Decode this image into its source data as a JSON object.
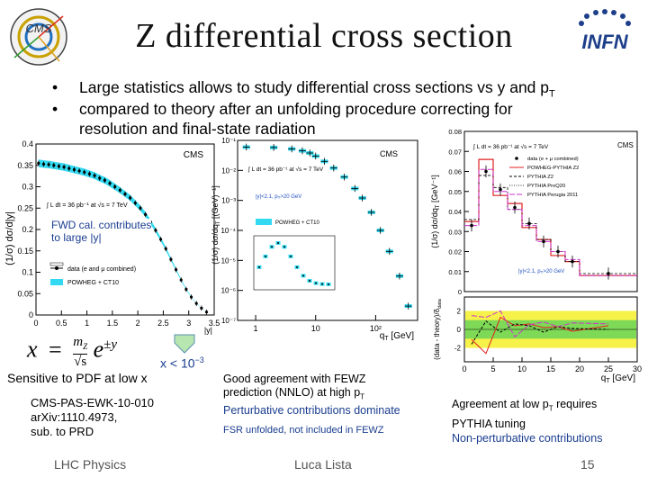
{
  "slide": {
    "title": "Z differential cross section",
    "bullets": [
      "Large statistics allows to study differential cross sections vs y and p",
      "compared to theory after an unfolding procedure correcting for",
      "resolution and final-state radiation"
    ],
    "bullet_pt_sub": "T",
    "logo_left": "CMS",
    "logo_right": "INFN",
    "fwd_note": [
      "FWD cal. contributes",
      "to large |y|"
    ],
    "formula": {
      "x": "x",
      "eq": "=",
      "mz": "m",
      "mz_sub": "Z",
      "root": "√s",
      "e": "e",
      "exp": "±y"
    },
    "x_small": "x < 10",
    "x_small_exp": "−3",
    "pdf_note": "Sensitive to PDF at low x",
    "ref": [
      "CMS-PAS-EWK-10-010",
      "arXiv:1110.4973,",
      "sub. to PRD"
    ],
    "mid_note": [
      "Good agreement with FEWZ",
      "prediction (NNLO) at high p",
      "T",
      "Perturbative contributions dominate"
    ],
    "fsr_note": "FSR unfolded, not included in FEWZ",
    "right_note": [
      "Agreement at low p",
      "T",
      " requires",
      "PYTHIA tuning",
      "Non-perturbative contributions"
    ],
    "footer_left": "LHC Physics",
    "footer_center": "Luca Lista",
    "page": "15",
    "colors": {
      "cyan_band": "#32d9f0",
      "red": "#e02020",
      "magenta": "#cc33cc",
      "green_band": "#7ed957",
      "yellow_band": "#f7f24a"
    }
  },
  "chart_data": [
    {
      "type": "scatter",
      "title": "",
      "cms_label": "CMS",
      "lumi": "∫ L dt = 36 pb⁻¹ at √s = 7 TeV",
      "xlabel": "|y|",
      "ylabel": "(1/σ) dσ/d|y|",
      "xlim": [
        0,
        3.5
      ],
      "ylim": [
        0,
        0.4
      ],
      "x_ticks": [
        "0",
        "0.5",
        "1",
        "1.5",
        "2",
        "2.5",
        "3",
        "3.5"
      ],
      "y_ticks": [
        "0",
        "0.05",
        "0.1",
        "0.15",
        "0.2",
        "0.25",
        "0.3",
        "0.35",
        "0.4"
      ],
      "legend": [
        "data (e and μ combined)",
        "POWHEG + CT10"
      ],
      "x": [
        0.05,
        0.15,
        0.25,
        0.35,
        0.45,
        0.55,
        0.65,
        0.75,
        0.85,
        0.95,
        1.05,
        1.15,
        1.25,
        1.35,
        1.45,
        1.55,
        1.65,
        1.75,
        1.85,
        1.95,
        2.05,
        2.15,
        2.25,
        2.35,
        2.45,
        2.55,
        2.65,
        2.75,
        2.85,
        2.95,
        3.05,
        3.15,
        3.25,
        3.35
      ],
      "y": [
        0.355,
        0.353,
        0.352,
        0.35,
        0.348,
        0.346,
        0.343,
        0.34,
        0.337,
        0.334,
        0.33,
        0.326,
        0.32,
        0.315,
        0.308,
        0.3,
        0.292,
        0.283,
        0.274,
        0.262,
        0.25,
        0.235,
        0.218,
        0.198,
        0.177,
        0.155,
        0.13,
        0.106,
        0.082,
        0.06,
        0.042,
        0.027,
        0.016,
        0.007
      ]
    },
    {
      "type": "line",
      "cms_label": "CMS",
      "lumi": "∫ L dt = 36 pb⁻¹ at √s = 7 TeV",
      "xlabel": "q",
      "xlabel_sub": "T",
      "xlabel_unit": " [GeV]",
      "ylabel": "(1/σ) dσ/dq",
      "ylabel_sub": "T",
      "ylabel_unit": " [(GeV)⁻¹]",
      "x_ticks": [
        "1",
        "10",
        "10²"
      ],
      "y_ticks": [
        "10⁻¹",
        "10⁻²",
        "10⁻³",
        "10⁻⁴",
        "10⁻⁵",
        "10⁻⁶",
        "10⁻⁷"
      ],
      "cut": "|y|<2.1, p",
      "cut_sub": "T",
      "cut_tail": ">20 GeV",
      "legend": [
        "POWHEG + CT10"
      ],
      "x": [
        0.7,
        2,
        4,
        6,
        8,
        10,
        14,
        20,
        30,
        45,
        60,
        85,
        120,
        170,
        250,
        350
      ],
      "y": [
        0.06,
        0.058,
        0.052,
        0.045,
        0.038,
        0.03,
        0.02,
        0.012,
        0.006,
        0.0025,
        0.0012,
        0.0004,
        0.0001,
        2e-05,
        3e-06,
        3e-07
      ]
    },
    {
      "type": "bar",
      "cms_label": "CMS",
      "lumi": "∫ L dt = 36 pb⁻¹ at √s = 7 TeV",
      "xlabel": "q",
      "xlabel_sub": "T",
      "xlabel_unit": " [GeV]",
      "ylabel": "(1/σ) dσ/dq",
      "ylabel_sub": "T",
      "ylabel_unit": " [GeV⁻¹]",
      "ratio_ylabel": "(data - theory)/δ",
      "ratio_ylabel_sub": "data",
      "xlim": [
        0,
        30
      ],
      "ylim": [
        0,
        0.08
      ],
      "x_ticks": [
        "0",
        "5",
        "10",
        "15",
        "20",
        "25",
        "30"
      ],
      "y_ticks": [
        "0",
        "0.01",
        "0.02",
        "0.03",
        "0.04",
        "0.05",
        "0.06",
        "0.07",
        "0.08"
      ],
      "ratio_ticks": [
        "-2",
        "0",
        "2"
      ],
      "cut": "|y|<2.1, p",
      "cut_sub": "T",
      "cut_tail": ">20 GeV",
      "legend": [
        "data (e + μ combined)",
        "POWHEG-PYTHIA Z2",
        "PYTHIA Z2",
        "PYTHIA ProQ20",
        "PYTHIA Perugia 2011"
      ],
      "bins": [
        0,
        2.5,
        5,
        7.5,
        10,
        12.5,
        15,
        17.5,
        20,
        30
      ],
      "data": [
        0.033,
        0.06,
        0.051,
        0.042,
        0.034,
        0.025,
        0.02,
        0.015,
        0.009
      ],
      "powheg": [
        0.035,
        0.066,
        0.048,
        0.044,
        0.032,
        0.026,
        0.018,
        0.015,
        0.008
      ],
      "pythia_z2": [
        0.036,
        0.058,
        0.052,
        0.041,
        0.034,
        0.026,
        0.02,
        0.015,
        0.009
      ],
      "perugia": [
        0.033,
        0.061,
        0.05,
        0.041,
        0.033,
        0.025,
        0.02,
        0.016,
        0.008
      ],
      "ratio_powheg": [
        -1.1,
        -2.6,
        1.3,
        0.4,
        0.6,
        0.2,
        0.3,
        -0.2,
        0.4
      ],
      "ratio_pythia": [
        -1.6,
        0.9,
        -0.3,
        0.6,
        0.4,
        -0.3,
        0.3,
        0.1,
        0.0
      ],
      "ratio_perugia": [
        1.5,
        1.3,
        2.0,
        -0.8,
        0.5,
        0.8,
        0.3,
        0.7,
        0.6
      ]
    }
  ]
}
